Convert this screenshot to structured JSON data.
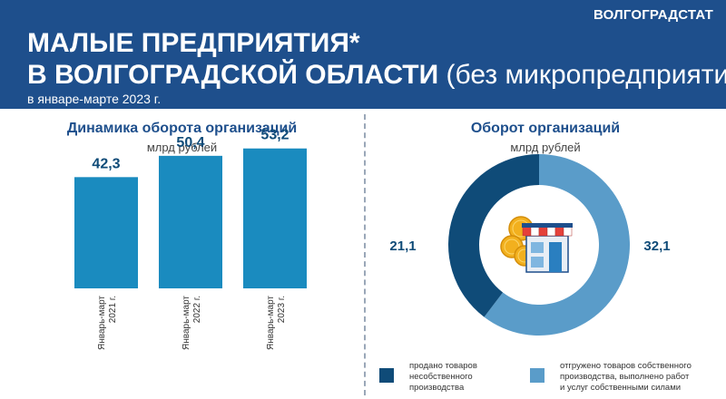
{
  "header": {
    "brand": "ВОЛГОГРАДСТАТ",
    "title_line1": "МАЛЫЕ ПРЕДПРИЯТИЯ*",
    "title_line2_bold": "В ВОЛГОГРАДСКОЙ ОБЛАСТИ",
    "title_line2_rest": " (без микропредприятий)",
    "period": "в январе-марте 2023 г."
  },
  "colors": {
    "header_bg": "#1e4f8c",
    "bar": "#1a8bbf",
    "dark_blue": "#0f4b78",
    "light_blue": "#5a9cc9",
    "title_text": "#1e4f8c"
  },
  "chart_data": [
    {
      "type": "bar",
      "title": "Динамика оборота организаций",
      "unit": "млрд рублей",
      "categories": [
        "Январь-март 2021 г.",
        "Январь-март 2022 г.",
        "Январь-март 2023 г."
      ],
      "category_lines": [
        [
          "Январь-март",
          "2021 г."
        ],
        [
          "Январь-март",
          "2022 г."
        ],
        [
          "Январь-март",
          "2023 г."
        ]
      ],
      "values": [
        42.3,
        50.4,
        53.2
      ],
      "value_labels": [
        "42,3",
        "50,4",
        "53,2"
      ],
      "ylim": [
        0,
        60
      ],
      "grid": false
    },
    {
      "type": "pie",
      "style": "donut",
      "title": "Оборот организаций",
      "unit": "млрд рублей",
      "slices": [
        {
          "name": "продано товаров несобственного производства",
          "value": 21.1,
          "label": "21,1",
          "color": "#0f4b78"
        },
        {
          "name": "отгружено товаров собственного производства, выполнено работ и услуг собственными силами",
          "value": 32.1,
          "label": "32,1",
          "color": "#5a9cc9"
        }
      ],
      "legend": {
        "placement": "bottom",
        "item1_lines": [
          "продано товаров",
          "несобственного",
          "производства"
        ],
        "item2_lines": [
          "отгружено товаров собственного",
          "производства, выполнено работ",
          "и услуг собственными силами"
        ]
      }
    }
  ]
}
